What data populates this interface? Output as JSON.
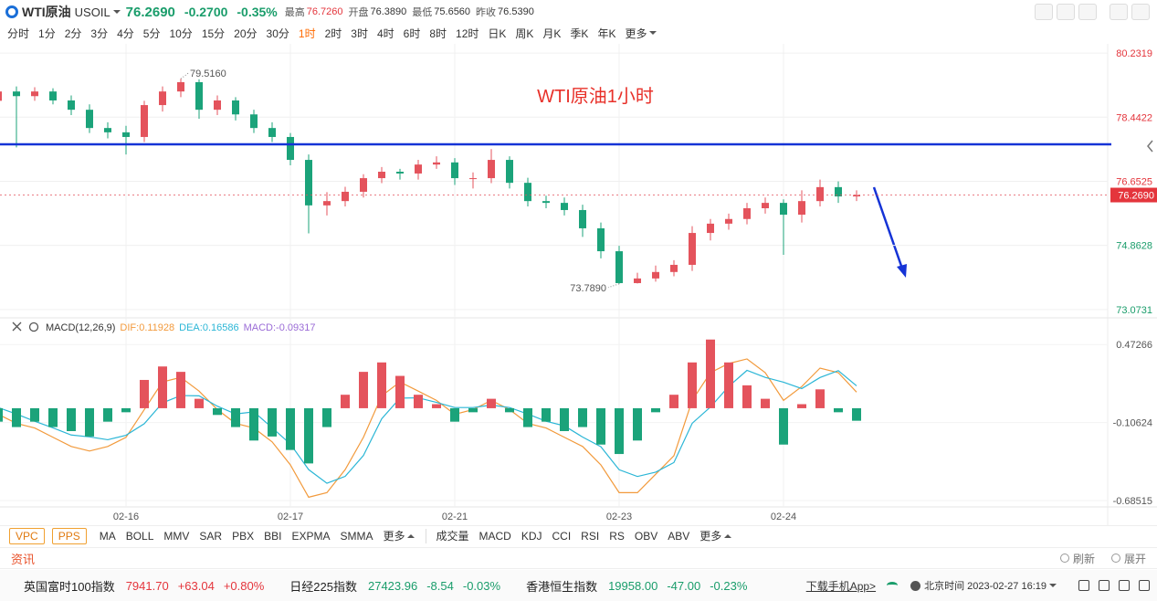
{
  "header": {
    "name": "WTI原油",
    "code": "USOIL",
    "price": "76.2690",
    "change": "-0.2700",
    "change_pct": "-0.35%",
    "stats": [
      {
        "label": "最高",
        "value": "76.7260",
        "trend": "up"
      },
      {
        "label": "开盘",
        "value": "76.3890",
        "trend": "flat"
      },
      {
        "label": "最低",
        "value": "75.6560",
        "trend": "flat"
      },
      {
        "label": "昨收",
        "value": "76.5390",
        "trend": "flat"
      }
    ]
  },
  "periods": {
    "items": [
      "分时",
      "1分",
      "2分",
      "3分",
      "4分",
      "5分",
      "10分",
      "15分",
      "20分",
      "30分",
      "1时",
      "2时",
      "3时",
      "4时",
      "6时",
      "8时",
      "12时",
      "日K",
      "周K",
      "月K",
      "季K",
      "年K",
      "更多"
    ],
    "active": 10
  },
  "chart_data": [
    {
      "type": "candlestick",
      "annotation": "WTI原油1小时",
      "open": [
        78.9,
        79.16,
        79.03,
        79.16,
        78.91,
        78.65,
        78.14,
        78.02,
        77.89,
        78.78,
        79.16,
        79.42,
        78.65,
        78.91,
        78.52,
        78.14,
        77.89,
        77.25,
        75.98,
        76.1,
        76.36,
        76.74,
        76.92,
        76.87,
        77.12,
        77.18,
        76.74,
        76.74,
        77.25,
        76.61,
        76.1,
        76.05,
        75.85,
        75.34,
        74.7,
        73.81,
        73.94,
        74.12,
        74.32,
        75.21,
        75.47,
        75.6,
        75.9,
        76.05,
        75.72,
        76.1,
        76.49,
        76.23
      ],
      "high": [
        79.36,
        79.3,
        79.28,
        79.25,
        79.05,
        78.8,
        78.3,
        78.2,
        78.9,
        79.3,
        79.516,
        79.5,
        79.05,
        79.0,
        78.65,
        78.3,
        78.0,
        77.4,
        76.35,
        76.5,
        76.85,
        77.05,
        77.0,
        77.25,
        77.35,
        77.3,
        76.9,
        77.55,
        77.35,
        76.75,
        76.25,
        76.2,
        76.0,
        75.5,
        74.85,
        74.1,
        74.3,
        74.45,
        75.4,
        75.6,
        75.75,
        76.05,
        76.2,
        76.15,
        76.4,
        76.7,
        76.65,
        76.4
      ],
      "low": [
        78.6,
        77.6,
        78.9,
        78.8,
        78.5,
        78.0,
        77.85,
        77.4,
        77.75,
        78.6,
        79.0,
        78.4,
        78.5,
        78.35,
        78.0,
        77.75,
        77.1,
        75.2,
        75.7,
        75.95,
        76.2,
        76.6,
        76.7,
        76.7,
        77.0,
        76.55,
        76.45,
        76.6,
        76.45,
        75.95,
        75.9,
        75.7,
        75.1,
        74.5,
        73.789,
        73.8,
        73.85,
        74.0,
        74.15,
        75.0,
        75.3,
        75.45,
        75.75,
        74.6,
        75.5,
        75.95,
        76.05,
        76.1
      ],
      "close": [
        79.16,
        79.03,
        79.16,
        78.91,
        78.65,
        78.14,
        78.02,
        77.89,
        78.78,
        79.16,
        79.42,
        78.65,
        78.91,
        78.52,
        78.14,
        77.89,
        77.25,
        75.98,
        76.1,
        76.36,
        76.74,
        76.92,
        76.87,
        77.12,
        77.18,
        76.74,
        76.74,
        77.25,
        76.61,
        76.1,
        76.05,
        75.85,
        75.34,
        74.7,
        73.81,
        73.94,
        74.12,
        74.32,
        75.21,
        75.47,
        75.6,
        75.9,
        76.05,
        75.72,
        76.1,
        76.49,
        76.23,
        76.269
      ],
      "ylim": [
        72.84,
        80.49
      ],
      "yticks": [
        80.2319,
        78.4422,
        76.6525,
        74.8628,
        73.0731
      ],
      "grid": true,
      "up_color": "#e4535c",
      "down_color": "#1ba37a",
      "last_price": {
        "value": 76.269,
        "label": "76.2690"
      },
      "max_label": {
        "value": 79.516,
        "label": "79.5160"
      },
      "min_label": {
        "value": 73.789,
        "label": "73.7890"
      },
      "trend_line": {
        "value": 77.684,
        "color": "#1533d6"
      }
    },
    {
      "type": "macd",
      "indicator": "MACD(12,26,9)",
      "categories": [
        null,
        null,
        null,
        null,
        null,
        null,
        null,
        "02-16",
        null,
        null,
        null,
        null,
        null,
        null,
        null,
        null,
        "02-17",
        null,
        null,
        null,
        null,
        null,
        null,
        null,
        null,
        "02-21",
        null,
        null,
        null,
        null,
        null,
        null,
        null,
        null,
        "02-23",
        null,
        null,
        null,
        null,
        null,
        null,
        null,
        null,
        "02-24",
        null,
        null,
        null,
        null
      ],
      "series": [
        {
          "name": "DIF:0.11928",
          "color": "#f29a3c",
          "style": "line",
          "values": [
            -0.045,
            -0.113,
            -0.147,
            -0.216,
            -0.284,
            -0.318,
            -0.284,
            -0.216,
            -0.01,
            0.195,
            0.229,
            0.127,
            -0.01,
            -0.113,
            -0.147,
            -0.25,
            -0.421,
            -0.661,
            -0.627,
            -0.456,
            -0.216,
            0.092,
            0.195,
            0.127,
            0.058,
            -0.045,
            -0.01,
            0.058,
            -0.01,
            -0.113,
            -0.147,
            -0.216,
            -0.284,
            -0.421,
            -0.627,
            -0.627,
            -0.49,
            -0.353,
            0.058,
            0.264,
            0.332,
            0.366,
            0.264,
            0.058,
            0.161,
            0.298,
            0.264,
            0.11928
          ]
        },
        {
          "name": "DEA:0.16586",
          "color": "#2bb6d6",
          "style": "line",
          "values": [
            0.005,
            -0.043,
            -0.097,
            -0.146,
            -0.199,
            -0.213,
            -0.234,
            -0.201,
            -0.115,
            0.04,
            0.094,
            0.092,
            0.015,
            -0.043,
            -0.027,
            -0.145,
            -0.266,
            -0.456,
            -0.557,
            -0.506,
            -0.351,
            -0.078,
            0.075,
            0.077,
            0.043,
            0.005,
            0.005,
            0.023,
            0.005,
            -0.043,
            -0.097,
            -0.131,
            -0.214,
            -0.286,
            -0.457,
            -0.507,
            -0.475,
            -0.403,
            -0.112,
            0.009,
            0.162,
            0.281,
            0.229,
            0.193,
            0.146,
            0.228,
            0.279,
            0.16586
          ]
        },
        {
          "name": "MACD:-0.09317",
          "color": "#9a6bd6",
          "style": "bar",
          "up_color": "#e4535c",
          "down_color": "#1ba37a",
          "values": [
            -0.1,
            -0.14,
            -0.1,
            -0.14,
            -0.17,
            -0.21,
            -0.1,
            -0.03,
            0.21,
            0.31,
            0.27,
            0.07,
            -0.05,
            -0.14,
            -0.24,
            -0.21,
            -0.31,
            -0.41,
            -0.14,
            0.1,
            0.27,
            0.34,
            0.24,
            0.1,
            0.03,
            -0.1,
            -0.03,
            0.07,
            -0.03,
            -0.14,
            -0.1,
            -0.17,
            -0.14,
            -0.27,
            -0.34,
            -0.24,
            -0.03,
            0.1,
            0.34,
            0.51,
            0.34,
            0.17,
            0.07,
            -0.27,
            0.03,
            0.14,
            -0.03,
            -0.09317
          ]
        }
      ],
      "ylim": [
        -0.733,
        0.671
      ],
      "yticks": [
        0.47266,
        -0.10624,
        -0.68515
      ],
      "grid": true
    }
  ],
  "indicators": {
    "boxed": [
      "VPC",
      "PPS"
    ],
    "main": [
      "MA",
      "BOLL",
      "MMV",
      "SAR",
      "PBX",
      "BBI",
      "EXPMA",
      "SMMA",
      "更多"
    ],
    "sub": [
      "成交量",
      "MACD",
      "KDJ",
      "CCI",
      "RSI",
      "RS",
      "OBV",
      "ABV",
      "更多"
    ]
  },
  "news": {
    "title": "资讯",
    "actions": [
      "刷新",
      "展开"
    ]
  },
  "ticker": {
    "items": [
      {
        "name": "英国富时100指数",
        "price": "7941.70",
        "change": "+63.04",
        "pct": "+0.80%",
        "trend": "up"
      },
      {
        "name": "日经225指数",
        "price": "27423.96",
        "change": "-8.54",
        "pct": "-0.03%",
        "trend": "down"
      },
      {
        "name": "香港恒生指数",
        "price": "19958.00",
        "change": "-47.00",
        "pct": "-0.23%",
        "trend": "down"
      }
    ],
    "download": "下载手机App>",
    "time_label": "北京时间 2023-02-27 16:19"
  }
}
